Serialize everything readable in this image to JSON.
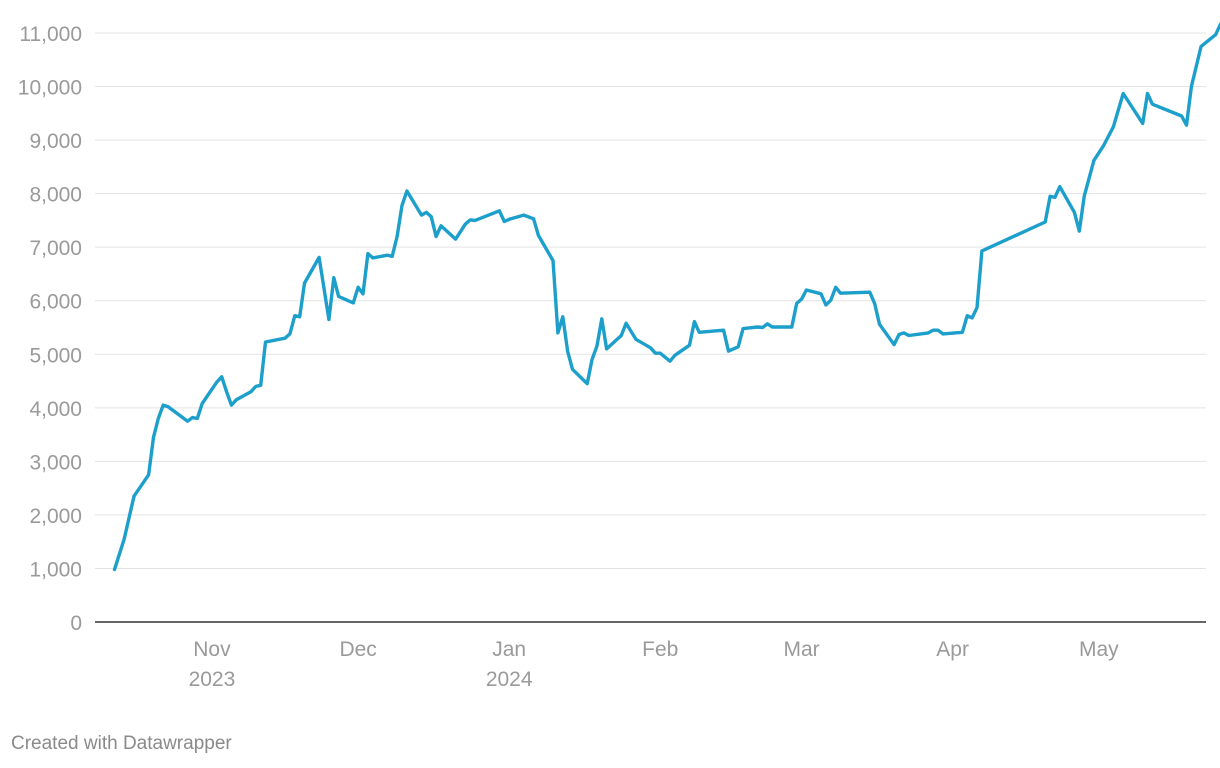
{
  "chart_data": {
    "type": "line",
    "title": "",
    "xlabel": "",
    "ylabel": "",
    "ylim": [
      0,
      11000
    ],
    "yticks": [
      {
        "value": 0,
        "label": "0"
      },
      {
        "value": 1000,
        "label": "1,000"
      },
      {
        "value": 2000,
        "label": "2,000"
      },
      {
        "value": 3000,
        "label": "3,000"
      },
      {
        "value": 4000,
        "label": "4,000"
      },
      {
        "value": 5000,
        "label": "5,000"
      },
      {
        "value": 6000,
        "label": "6,000"
      },
      {
        "value": 7000,
        "label": "7,000"
      },
      {
        "value": 8000,
        "label": "8,000"
      },
      {
        "value": 9000,
        "label": "9,000"
      },
      {
        "value": 10000,
        "label": "10,000"
      },
      {
        "value": 11000,
        "label": "11,000"
      }
    ],
    "xlim": [
      "2023-10-08",
      "2024-05-23"
    ],
    "xticks": [
      {
        "date": "2023-11-01",
        "label": "Nov",
        "sublabel": "2023"
      },
      {
        "date": "2023-12-01",
        "label": "Dec",
        "sublabel": ""
      },
      {
        "date": "2024-01-01",
        "label": "Jan",
        "sublabel": "2024"
      },
      {
        "date": "2024-02-01",
        "label": "Feb",
        "sublabel": ""
      },
      {
        "date": "2024-03-01",
        "label": "Mar",
        "sublabel": ""
      },
      {
        "date": "2024-04-01",
        "label": "Apr",
        "sublabel": ""
      },
      {
        "date": "2024-05-01",
        "label": "May",
        "sublabel": ""
      }
    ],
    "grid": true,
    "series": [
      {
        "color": "#1d9fcb",
        "points": [
          [
            "2023-10-12",
            980
          ],
          [
            "2023-10-14",
            1550
          ],
          [
            "2023-10-16",
            2350
          ],
          [
            "2023-10-19",
            2750
          ],
          [
            "2023-10-20",
            3450
          ],
          [
            "2023-10-21",
            3800
          ],
          [
            "2023-10-22",
            4050
          ],
          [
            "2023-10-23",
            4020
          ],
          [
            "2023-10-27",
            3750
          ],
          [
            "2023-10-28",
            3820
          ],
          [
            "2023-10-29",
            3800
          ],
          [
            "2023-10-30",
            4080
          ],
          [
            "2023-11-02",
            4480
          ],
          [
            "2023-11-03",
            4580
          ],
          [
            "2023-11-04",
            4300
          ],
          [
            "2023-11-05",
            4050
          ],
          [
            "2023-11-06",
            4150
          ],
          [
            "2023-11-09",
            4300
          ],
          [
            "2023-11-10",
            4400
          ],
          [
            "2023-11-11",
            4420
          ],
          [
            "2023-11-12",
            5230
          ],
          [
            "2023-11-16",
            5300
          ],
          [
            "2023-11-17",
            5380
          ],
          [
            "2023-11-18",
            5720
          ],
          [
            "2023-11-19",
            5700
          ],
          [
            "2023-11-20",
            6330
          ],
          [
            "2023-11-23",
            6810
          ],
          [
            "2023-11-25",
            5650
          ],
          [
            "2023-11-26",
            6430
          ],
          [
            "2023-11-27",
            6080
          ],
          [
            "2023-11-30",
            5960
          ],
          [
            "2023-12-01",
            6250
          ],
          [
            "2023-12-02",
            6130
          ],
          [
            "2023-12-03",
            6880
          ],
          [
            "2023-12-04",
            6800
          ],
          [
            "2023-12-07",
            6850
          ],
          [
            "2023-12-08",
            6830
          ],
          [
            "2023-12-09",
            7200
          ],
          [
            "2023-12-10",
            7780
          ],
          [
            "2023-12-11",
            8050
          ],
          [
            "2023-12-14",
            7600
          ],
          [
            "2023-12-15",
            7650
          ],
          [
            "2023-12-16",
            7570
          ],
          [
            "2023-12-17",
            7200
          ],
          [
            "2023-12-18",
            7400
          ],
          [
            "2023-12-21",
            7150
          ],
          [
            "2023-12-23",
            7430
          ],
          [
            "2023-12-24",
            7510
          ],
          [
            "2023-12-25",
            7500
          ],
          [
            "2023-12-30",
            7680
          ],
          [
            "2023-12-31",
            7480
          ],
          [
            "2024-01-01",
            7520
          ],
          [
            "2024-01-04",
            7600
          ],
          [
            "2024-01-06",
            7530
          ],
          [
            "2024-01-07",
            7220
          ],
          [
            "2024-01-10",
            6750
          ],
          [
            "2024-01-11",
            5400
          ],
          [
            "2024-01-12",
            5700
          ],
          [
            "2024-01-13",
            5050
          ],
          [
            "2024-01-14",
            4720
          ],
          [
            "2024-01-17",
            4450
          ],
          [
            "2024-01-18",
            4900
          ],
          [
            "2024-01-19",
            5150
          ],
          [
            "2024-01-20",
            5660
          ],
          [
            "2024-01-21",
            5100
          ],
          [
            "2024-01-24",
            5350
          ],
          [
            "2024-01-25",
            5580
          ],
          [
            "2024-01-27",
            5280
          ],
          [
            "2024-01-30",
            5120
          ],
          [
            "2024-01-31",
            5020
          ],
          [
            "2024-02-01",
            5020
          ],
          [
            "2024-02-03",
            4870
          ],
          [
            "2024-02-04",
            4980
          ],
          [
            "2024-02-07",
            5170
          ],
          [
            "2024-02-08",
            5610
          ],
          [
            "2024-02-09",
            5410
          ],
          [
            "2024-02-14",
            5450
          ],
          [
            "2024-02-15",
            5060
          ],
          [
            "2024-02-17",
            5140
          ],
          [
            "2024-02-18",
            5480
          ],
          [
            "2024-02-21",
            5510
          ],
          [
            "2024-02-22",
            5500
          ],
          [
            "2024-02-23",
            5570
          ],
          [
            "2024-02-24",
            5510
          ],
          [
            "2024-02-28",
            5510
          ],
          [
            "2024-02-29",
            5950
          ],
          [
            "2024-03-01",
            6030
          ],
          [
            "2024-03-02",
            6200
          ],
          [
            "2024-03-05",
            6130
          ],
          [
            "2024-03-06",
            5920
          ],
          [
            "2024-03-07",
            6010
          ],
          [
            "2024-03-08",
            6250
          ],
          [
            "2024-03-09",
            6140
          ],
          [
            "2024-03-15",
            6160
          ],
          [
            "2024-03-16",
            5950
          ],
          [
            "2024-03-17",
            5560
          ],
          [
            "2024-03-20",
            5180
          ],
          [
            "2024-03-21",
            5370
          ],
          [
            "2024-03-22",
            5400
          ],
          [
            "2024-03-23",
            5350
          ],
          [
            "2024-03-27",
            5400
          ],
          [
            "2024-03-28",
            5450
          ],
          [
            "2024-03-29",
            5450
          ],
          [
            "2024-03-30",
            5380
          ],
          [
            "2024-04-03",
            5410
          ],
          [
            "2024-04-04",
            5720
          ],
          [
            "2024-04-05",
            5680
          ],
          [
            "2024-04-06",
            5870
          ],
          [
            "2024-04-07",
            6930
          ],
          [
            "2024-04-20",
            7470
          ],
          [
            "2024-04-21",
            7950
          ],
          [
            "2024-04-22",
            7930
          ],
          [
            "2024-04-23",
            8130
          ],
          [
            "2024-04-26",
            7650
          ],
          [
            "2024-04-27",
            7300
          ],
          [
            "2024-04-28",
            7950
          ],
          [
            "2024-04-30",
            8620
          ],
          [
            "2024-05-02",
            8900
          ],
          [
            "2024-05-04",
            9250
          ],
          [
            "2024-05-06",
            9870
          ],
          [
            "2024-05-10",
            9310
          ],
          [
            "2024-05-11",
            9870
          ],
          [
            "2024-05-12",
            9670
          ],
          [
            "2024-05-18",
            9450
          ],
          [
            "2024-05-19",
            9280
          ],
          [
            "2024-05-20",
            10000
          ],
          [
            "2024-05-22",
            10750
          ],
          [
            "2024-05-25",
            10970
          ],
          [
            "2024-05-26",
            11170
          ],
          [
            "2024-05-27",
            11230
          ]
        ]
      }
    ]
  },
  "footer": {
    "credit": "Created with Datawrapper"
  }
}
